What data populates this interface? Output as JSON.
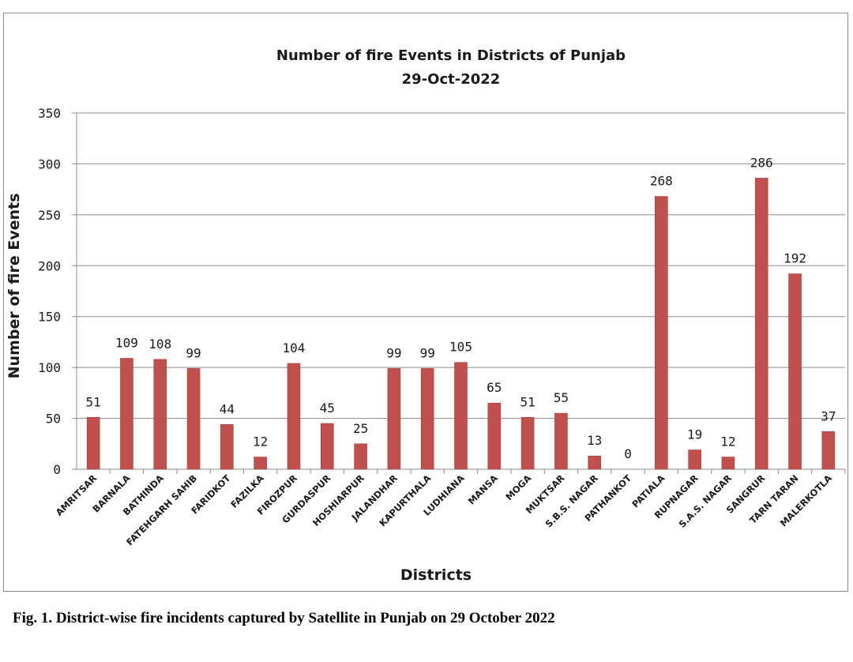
{
  "chart_data": {
    "type": "bar",
    "title": "Number of fire Events in Districts of Punjab",
    "subtitle": "29-Oct-2022",
    "xlabel": "Districts",
    "ylabel": "Number of fire Events",
    "ylim": [
      0,
      350
    ],
    "yticks": [
      "0",
      "50",
      "100",
      "150",
      "200",
      "250",
      "300",
      "350"
    ],
    "grid": true,
    "legend": "none",
    "bar_color": "#c0504d",
    "categories": [
      "AMRITSAR",
      "BARNALA",
      "BATHINDA",
      "FATEHGARH SAHIB",
      "FARIDKOT",
      "FAZILKA",
      "FIROZPUR",
      "GURDASPUR",
      "HOSHIARPUR",
      "JALANDHAR",
      "KAPURTHALA",
      "LUDHIANA",
      "MANSA",
      "MOGA",
      "MUKTSAR",
      "S.B.S. NAGAR",
      "PATHANKOT",
      "PATIALA",
      "RUPNAGAR",
      "S.A.S. NAGAR",
      "SANGRUR",
      "TARN TARAN",
      "MALERKOTLA"
    ],
    "values": [
      51,
      109,
      108,
      99,
      44,
      12,
      104,
      45,
      25,
      99,
      99,
      105,
      65,
      51,
      55,
      13,
      0,
      268,
      19,
      12,
      286,
      192,
      37
    ],
    "data_labels": [
      "51",
      "109",
      "108",
      "99",
      "44",
      "12",
      "104",
      "45",
      "25",
      "99",
      "99",
      "105",
      "65",
      "51",
      "55",
      "13",
      "0",
      "268",
      "19",
      "12",
      "286",
      "192",
      "37"
    ]
  },
  "caption": "Fig. 1. District-wise fire incidents captured by Satellite in Punjab on 29 October 2022"
}
